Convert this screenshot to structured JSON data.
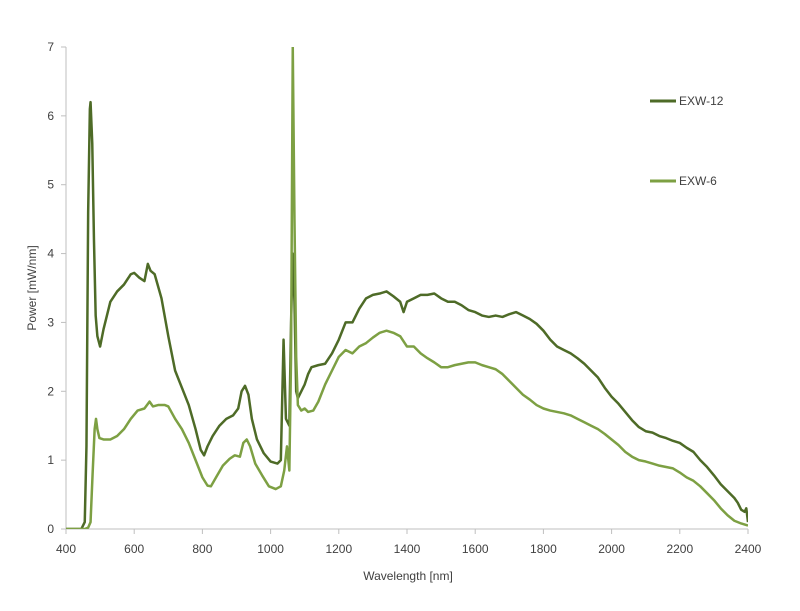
{
  "chart_data": {
    "type": "line",
    "title": "",
    "xlabel": "Wavelength [nm]",
    "ylabel": "Power [mW/nm]",
    "xlim": [
      400,
      2400
    ],
    "ylim": [
      0,
      7
    ],
    "x_ticks": [
      400,
      600,
      800,
      1000,
      1200,
      1400,
      1600,
      1800,
      2000,
      2200,
      2400
    ],
    "y_ticks": [
      0,
      1,
      2,
      3,
      4,
      5,
      6,
      7
    ],
    "grid": false,
    "legend_position": "right",
    "series": [
      {
        "name": "EXW-12",
        "color": "#4e6b27",
        "points": [
          [
            400,
            0
          ],
          [
            445,
            0
          ],
          [
            455,
            0.1
          ],
          [
            460,
            1.2
          ],
          [
            465,
            4.6
          ],
          [
            470,
            6.1
          ],
          [
            472,
            6.2
          ],
          [
            477,
            5.6
          ],
          [
            482,
            4.2
          ],
          [
            487,
            3.1
          ],
          [
            492,
            2.8
          ],
          [
            500,
            2.65
          ],
          [
            510,
            2.9
          ],
          [
            520,
            3.1
          ],
          [
            530,
            3.3
          ],
          [
            550,
            3.45
          ],
          [
            570,
            3.55
          ],
          [
            590,
            3.7
          ],
          [
            600,
            3.72
          ],
          [
            615,
            3.65
          ],
          [
            630,
            3.6
          ],
          [
            640,
            3.85
          ],
          [
            648,
            3.75
          ],
          [
            660,
            3.7
          ],
          [
            680,
            3.35
          ],
          [
            700,
            2.8
          ],
          [
            720,
            2.3
          ],
          [
            740,
            2.05
          ],
          [
            760,
            1.8
          ],
          [
            780,
            1.45
          ],
          [
            795,
            1.15
          ],
          [
            805,
            1.07
          ],
          [
            815,
            1.2
          ],
          [
            830,
            1.35
          ],
          [
            850,
            1.5
          ],
          [
            870,
            1.6
          ],
          [
            890,
            1.65
          ],
          [
            905,
            1.75
          ],
          [
            915,
            2.0
          ],
          [
            925,
            2.08
          ],
          [
            935,
            1.95
          ],
          [
            945,
            1.6
          ],
          [
            960,
            1.3
          ],
          [
            980,
            1.1
          ],
          [
            1000,
            0.98
          ],
          [
            1020,
            0.95
          ],
          [
            1030,
            1.0
          ],
          [
            1038,
            2.75
          ],
          [
            1045,
            1.6
          ],
          [
            1055,
            1.5
          ],
          [
            1060,
            3.0
          ],
          [
            1065,
            4.0
          ],
          [
            1070,
            3.3
          ],
          [
            1075,
            2.0
          ],
          [
            1080,
            1.9
          ],
          [
            1090,
            2.0
          ],
          [
            1100,
            2.1
          ],
          [
            1110,
            2.25
          ],
          [
            1120,
            2.35
          ],
          [
            1140,
            2.38
          ],
          [
            1160,
            2.4
          ],
          [
            1180,
            2.55
          ],
          [
            1200,
            2.75
          ],
          [
            1220,
            3.0
          ],
          [
            1240,
            3.0
          ],
          [
            1260,
            3.2
          ],
          [
            1280,
            3.35
          ],
          [
            1300,
            3.4
          ],
          [
            1320,
            3.42
          ],
          [
            1340,
            3.45
          ],
          [
            1360,
            3.38
          ],
          [
            1380,
            3.3
          ],
          [
            1390,
            3.15
          ],
          [
            1400,
            3.3
          ],
          [
            1420,
            3.35
          ],
          [
            1440,
            3.4
          ],
          [
            1460,
            3.4
          ],
          [
            1480,
            3.42
          ],
          [
            1500,
            3.35
          ],
          [
            1520,
            3.3
          ],
          [
            1540,
            3.3
          ],
          [
            1560,
            3.25
          ],
          [
            1580,
            3.18
          ],
          [
            1600,
            3.15
          ],
          [
            1620,
            3.1
          ],
          [
            1640,
            3.08
          ],
          [
            1660,
            3.1
          ],
          [
            1680,
            3.08
          ],
          [
            1700,
            3.12
          ],
          [
            1720,
            3.15
          ],
          [
            1740,
            3.1
          ],
          [
            1760,
            3.05
          ],
          [
            1780,
            2.98
          ],
          [
            1800,
            2.88
          ],
          [
            1820,
            2.75
          ],
          [
            1840,
            2.65
          ],
          [
            1860,
            2.6
          ],
          [
            1880,
            2.55
          ],
          [
            1900,
            2.48
          ],
          [
            1920,
            2.4
          ],
          [
            1940,
            2.3
          ],
          [
            1960,
            2.2
          ],
          [
            1980,
            2.05
          ],
          [
            2000,
            1.92
          ],
          [
            2020,
            1.82
          ],
          [
            2040,
            1.7
          ],
          [
            2060,
            1.58
          ],
          [
            2080,
            1.48
          ],
          [
            2100,
            1.42
          ],
          [
            2120,
            1.4
          ],
          [
            2140,
            1.35
          ],
          [
            2160,
            1.32
          ],
          [
            2180,
            1.28
          ],
          [
            2200,
            1.25
          ],
          [
            2220,
            1.18
          ],
          [
            2240,
            1.12
          ],
          [
            2260,
            1.0
          ],
          [
            2280,
            0.9
          ],
          [
            2300,
            0.78
          ],
          [
            2320,
            0.65
          ],
          [
            2340,
            0.55
          ],
          [
            2360,
            0.45
          ],
          [
            2370,
            0.38
          ],
          [
            2380,
            0.28
          ],
          [
            2390,
            0.25
          ],
          [
            2395,
            0.3
          ],
          [
            2400,
            0.1
          ]
        ]
      },
      {
        "name": "EXW-6",
        "color": "#7da043",
        "points": [
          [
            400,
            0
          ],
          [
            455,
            0
          ],
          [
            465,
            0.02
          ],
          [
            472,
            0.1
          ],
          [
            478,
            0.8
          ],
          [
            484,
            1.45
          ],
          [
            488,
            1.6
          ],
          [
            492,
            1.45
          ],
          [
            498,
            1.32
          ],
          [
            510,
            1.3
          ],
          [
            530,
            1.3
          ],
          [
            550,
            1.35
          ],
          [
            570,
            1.45
          ],
          [
            590,
            1.6
          ],
          [
            610,
            1.72
          ],
          [
            630,
            1.75
          ],
          [
            645,
            1.85
          ],
          [
            655,
            1.78
          ],
          [
            670,
            1.8
          ],
          [
            690,
            1.8
          ],
          [
            700,
            1.78
          ],
          [
            720,
            1.6
          ],
          [
            740,
            1.45
          ],
          [
            760,
            1.25
          ],
          [
            780,
            1.0
          ],
          [
            800,
            0.75
          ],
          [
            815,
            0.63
          ],
          [
            825,
            0.62
          ],
          [
            840,
            0.75
          ],
          [
            860,
            0.92
          ],
          [
            880,
            1.02
          ],
          [
            895,
            1.07
          ],
          [
            910,
            1.05
          ],
          [
            920,
            1.25
          ],
          [
            930,
            1.3
          ],
          [
            940,
            1.2
          ],
          [
            955,
            0.95
          ],
          [
            975,
            0.78
          ],
          [
            995,
            0.62
          ],
          [
            1015,
            0.58
          ],
          [
            1030,
            0.62
          ],
          [
            1040,
            0.85
          ],
          [
            1048,
            1.2
          ],
          [
            1055,
            0.85
          ],
          [
            1060,
            2.5
          ],
          [
            1065,
            7.0
          ],
          [
            1070,
            4.5
          ],
          [
            1075,
            2.5
          ],
          [
            1080,
            1.8
          ],
          [
            1090,
            1.72
          ],
          [
            1100,
            1.75
          ],
          [
            1110,
            1.7
          ],
          [
            1125,
            1.72
          ],
          [
            1140,
            1.85
          ],
          [
            1160,
            2.1
          ],
          [
            1180,
            2.3
          ],
          [
            1200,
            2.5
          ],
          [
            1220,
            2.6
          ],
          [
            1240,
            2.55
          ],
          [
            1260,
            2.65
          ],
          [
            1280,
            2.7
          ],
          [
            1300,
            2.78
          ],
          [
            1320,
            2.85
          ],
          [
            1340,
            2.88
          ],
          [
            1360,
            2.85
          ],
          [
            1380,
            2.8
          ],
          [
            1400,
            2.65
          ],
          [
            1420,
            2.65
          ],
          [
            1440,
            2.55
          ],
          [
            1460,
            2.48
          ],
          [
            1480,
            2.42
          ],
          [
            1500,
            2.35
          ],
          [
            1520,
            2.35
          ],
          [
            1540,
            2.38
          ],
          [
            1560,
            2.4
          ],
          [
            1580,
            2.42
          ],
          [
            1600,
            2.42
          ],
          [
            1620,
            2.38
          ],
          [
            1640,
            2.35
          ],
          [
            1660,
            2.32
          ],
          [
            1680,
            2.25
          ],
          [
            1700,
            2.15
          ],
          [
            1720,
            2.05
          ],
          [
            1740,
            1.95
          ],
          [
            1760,
            1.88
          ],
          [
            1780,
            1.8
          ],
          [
            1800,
            1.75
          ],
          [
            1820,
            1.72
          ],
          [
            1840,
            1.7
          ],
          [
            1860,
            1.68
          ],
          [
            1880,
            1.65
          ],
          [
            1900,
            1.6
          ],
          [
            1920,
            1.55
          ],
          [
            1940,
            1.5
          ],
          [
            1960,
            1.45
          ],
          [
            1980,
            1.38
          ],
          [
            2000,
            1.3
          ],
          [
            2020,
            1.22
          ],
          [
            2040,
            1.12
          ],
          [
            2060,
            1.05
          ],
          [
            2080,
            1.0
          ],
          [
            2100,
            0.98
          ],
          [
            2120,
            0.95
          ],
          [
            2140,
            0.92
          ],
          [
            2160,
            0.9
          ],
          [
            2180,
            0.88
          ],
          [
            2200,
            0.82
          ],
          [
            2220,
            0.75
          ],
          [
            2240,
            0.7
          ],
          [
            2260,
            0.62
          ],
          [
            2280,
            0.52
          ],
          [
            2300,
            0.42
          ],
          [
            2320,
            0.3
          ],
          [
            2340,
            0.2
          ],
          [
            2360,
            0.12
          ],
          [
            2380,
            0.08
          ],
          [
            2400,
            0.05
          ]
        ]
      }
    ]
  }
}
